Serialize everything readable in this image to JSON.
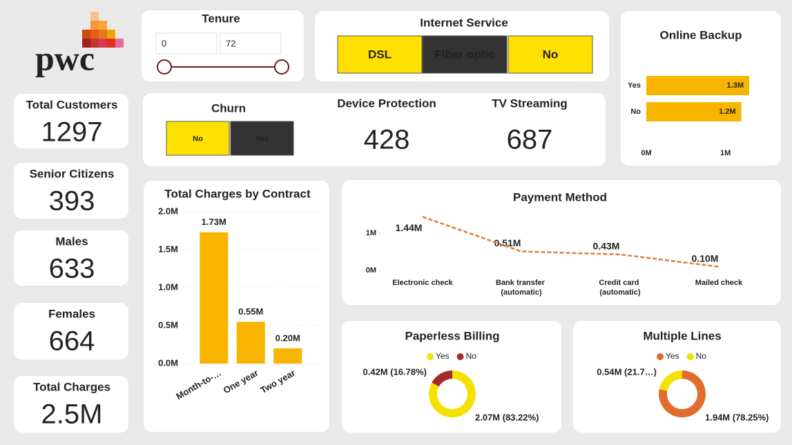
{
  "logo": {
    "text": "pwc"
  },
  "cards": [
    {
      "label": "Total Customers",
      "value": 1297
    },
    {
      "label": "Senior Citizens",
      "value": 393
    },
    {
      "label": "Males",
      "value": 633
    },
    {
      "label": "Females",
      "value": 664
    },
    {
      "label": "Total Charges",
      "value": "2.5M"
    }
  ],
  "kpis": [
    {
      "label": "Device Protection",
      "value": 428
    },
    {
      "label": "TV Streaming",
      "value": 687
    }
  ],
  "slicers": {
    "tenure": {
      "title": "Tenure",
      "min": 0,
      "max": 72
    },
    "internet_service": {
      "title": "Internet Service",
      "options": [
        "DSL",
        "Fiber optic",
        "No"
      ],
      "selected_index": 1
    },
    "churn": {
      "title": "Churn",
      "options": [
        "No",
        "Yes"
      ],
      "selected_index": 1
    }
  },
  "chart_data": [
    {
      "type": "hbar",
      "title": "Online Backup",
      "categories": [
        "Yes",
        "No"
      ],
      "values": [
        1300000,
        1200000
      ],
      "value_labels": [
        "1.3M",
        "1.2M"
      ],
      "color": "#f7b500",
      "xlim": [
        0,
        1300000
      ],
      "xticks": [
        {
          "value": 0,
          "label": "0M"
        },
        {
          "value": 1000000,
          "label": "1M"
        }
      ]
    },
    {
      "type": "bar",
      "title": "Total Charges by Contract",
      "categories": [
        "Month-to-…",
        "One year",
        "Two year"
      ],
      "values": [
        1730000,
        550000,
        200000
      ],
      "value_labels": [
        "1.73M",
        "0.55M",
        "0.20M"
      ],
      "color": "#f7b500",
      "ylim": [
        0,
        2000000
      ],
      "yticks": [
        {
          "value": 0,
          "label": "0.0M"
        },
        {
          "value": 500000,
          "label": "0.5M"
        },
        {
          "value": 1000000,
          "label": "1.0M"
        },
        {
          "value": 1500000,
          "label": "1.5M"
        },
        {
          "value": 2000000,
          "label": "2.0M"
        }
      ],
      "grid": true
    },
    {
      "type": "line",
      "title": "Payment Method",
      "categories": [
        "Electronic check",
        "Bank transfer (automatic)",
        "Credit card (automatic)",
        "Mailed check"
      ],
      "values": [
        1440000,
        510000,
        430000,
        100000
      ],
      "value_labels": [
        "1.44M",
        "0.51M",
        "0.43M",
        "0.10M"
      ],
      "color": "#e07b39",
      "ylim": [
        0,
        1500000
      ],
      "yticks": [
        {
          "value": 0,
          "label": "0M"
        },
        {
          "value": 1000000,
          "label": "1M"
        }
      ]
    },
    {
      "type": "donut",
      "title": "Paperless Billing",
      "categories": [
        "Yes",
        "No"
      ],
      "values": [
        2070000,
        420000
      ],
      "value_labels": [
        "2.07M (83.22%)",
        "0.42M (16.78%)"
      ],
      "colors": [
        "#f5e100",
        "#a52a2a"
      ]
    },
    {
      "type": "donut",
      "title": "Multiple Lines",
      "categories": [
        "Yes",
        "No"
      ],
      "values": [
        1940000,
        540000
      ],
      "value_labels": [
        "1.94M (78.25%)",
        "0.54M (21.7…)"
      ],
      "colors": [
        "#e06c2e",
        "#f5e100"
      ]
    }
  ]
}
